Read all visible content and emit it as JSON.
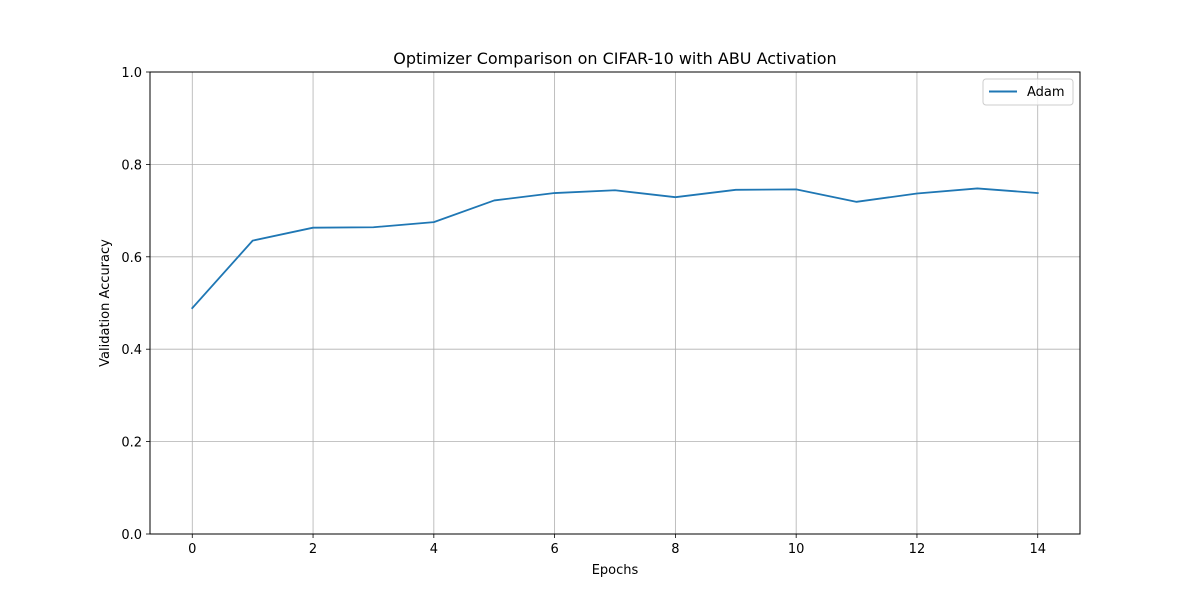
{
  "chart_data": {
    "type": "line",
    "title": "Optimizer Comparison on CIFAR-10 with ABU Activation",
    "xlabel": "Epochs",
    "ylabel": "Validation Accuracy",
    "xlim": [
      -0.7,
      14.7
    ],
    "ylim": [
      0.0,
      1.0
    ],
    "xticks": [
      0,
      2,
      4,
      6,
      8,
      10,
      12,
      14
    ],
    "xtick_labels": [
      "0",
      "2",
      "4",
      "6",
      "8",
      "10",
      "12",
      "14"
    ],
    "yticks": [
      0.0,
      0.2,
      0.4,
      0.6,
      0.8,
      1.0
    ],
    "ytick_labels": [
      "0.0",
      "0.2",
      "0.4",
      "0.6",
      "0.8",
      "1.0"
    ],
    "grid": true,
    "legend_position": "top-right",
    "x": [
      0,
      1,
      2,
      3,
      4,
      5,
      6,
      7,
      8,
      9,
      10,
      11,
      12,
      13,
      14
    ],
    "series": [
      {
        "name": "Adam",
        "color": "#1f77b4",
        "values": [
          0.489,
          0.635,
          0.663,
          0.664,
          0.675,
          0.722,
          0.738,
          0.744,
          0.729,
          0.745,
          0.746,
          0.719,
          0.737,
          0.748,
          0.738
        ]
      }
    ]
  }
}
